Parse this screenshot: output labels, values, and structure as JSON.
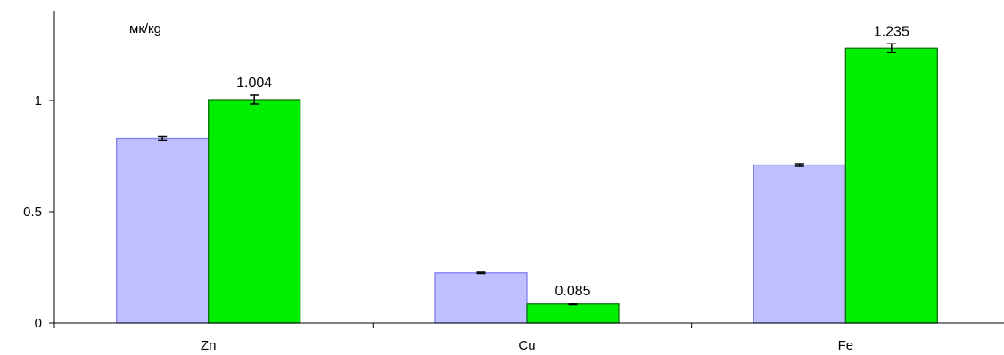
{
  "chart_data": {
    "type": "bar",
    "unit_label": "мк/кg",
    "categories": [
      "Zn",
      "Cu",
      "Fe"
    ],
    "ylim": [
      0,
      1.35
    ],
    "yticks": [
      0,
      0.5,
      1
    ],
    "ytick_labels": [
      "0",
      "0.5",
      "1"
    ],
    "grid": false,
    "legend": "none",
    "series": [
      {
        "color": "#BFBFFF",
        "edge_color": "#8080F0",
        "values": [
          0.83,
          0.225,
          0.71
        ],
        "errors": [
          0.008,
          0.003,
          0.006
        ],
        "labels": [
          "",
          "",
          ""
        ]
      },
      {
        "color": "#00EE00",
        "edge_color": "#107010",
        "values": [
          1.004,
          0.085,
          1.235
        ],
        "errors": [
          0.02,
          0.003,
          0.02
        ],
        "labels": [
          "1.004",
          "0.085",
          "1.235"
        ]
      }
    ]
  }
}
